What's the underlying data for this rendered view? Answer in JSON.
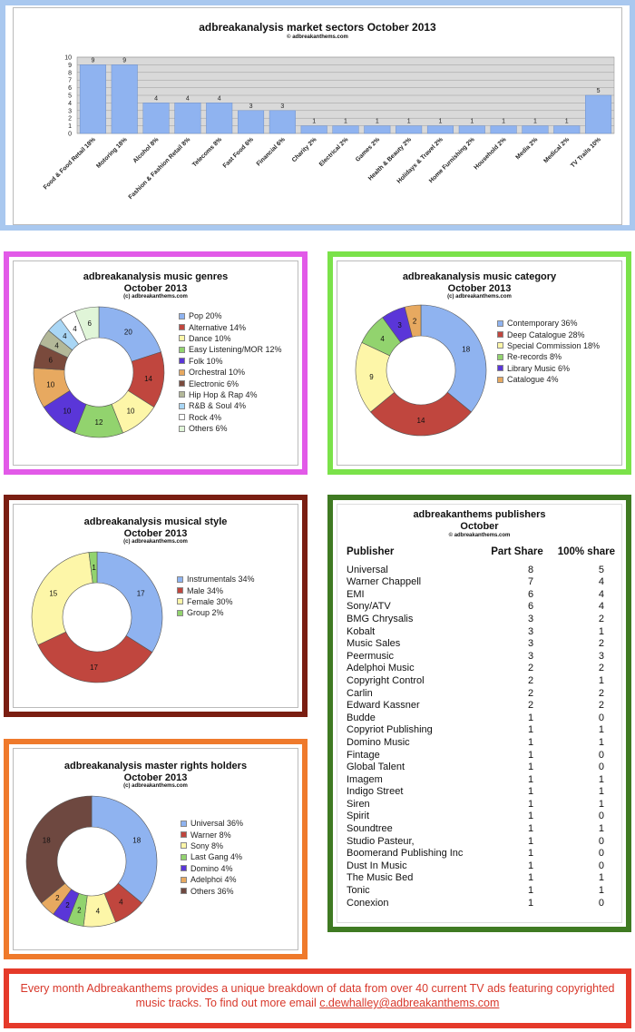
{
  "chart_data": [
    {
      "id": "sectors",
      "type": "bar",
      "title": "adbreakanalysis market sectors October 2013",
      "copyright": "© adbreakanthems.com",
      "categories": [
        "Food & Food Retail 18%",
        "Motoring 18%",
        "Alcohol 8%",
        "Fashion & Fashion Retail 8%",
        "Telecoms 8%",
        "Fast Food 6%",
        "Financial 6%",
        "Charity 2%",
        "Electrical 2%",
        "Games 2%",
        "Health & Beauty 2%",
        "Holidays & Travel 2%",
        "Home Furnishing 2%",
        "Household 2%",
        "Media 2%",
        "Medical 2%",
        "TV Trails 10%"
      ],
      "values": [
        9,
        9,
        4,
        4,
        4,
        3,
        3,
        1,
        1,
        1,
        1,
        1,
        1,
        1,
        1,
        1,
        5
      ],
      "ylim": [
        0,
        10
      ],
      "yticks": [
        "0",
        "1",
        "2",
        "3",
        "4",
        "5",
        "6",
        "7",
        "8",
        "9",
        "10"
      ],
      "grid": true,
      "bar_color": "#8fb3f0"
    },
    {
      "id": "genres",
      "type": "pie",
      "title_lines": [
        "adbreakanalysis music genres",
        "October 2013"
      ],
      "copyright": "(c) adbreakanthems.com",
      "labels": [
        "Pop 20%",
        "Alternative 14%",
        "Dance 10%",
        "Easy Listening/MOR 12%",
        "Folk 10%",
        "Orchestral 10%",
        "Electronic 6%",
        "Hip Hop & Rap 4%",
        "R&B & Soul 4%",
        "Rock 4%",
        "Others 6%"
      ],
      "values": [
        20,
        14,
        10,
        12,
        10,
        10,
        6,
        4,
        4,
        4,
        6
      ],
      "colors": [
        "#8fb3f0",
        "#c0463e",
        "#fdf6a8",
        "#92d36e",
        "#5a36d8",
        "#e7a960",
        "#7a4a3c",
        "#b3b899",
        "#a9d6f5",
        "#ffffff",
        "#e0f5d8"
      ],
      "legend_position": "right"
    },
    {
      "id": "category",
      "type": "pie",
      "title_lines": [
        "adbreakanalysis music category",
        "October 2013"
      ],
      "copyright": "(c) adbreakanthems.com",
      "labels": [
        "Contemporary 36%",
        "Deep Catalogue 28%",
        "Special Commission 18%",
        "Re-records 8%",
        "Library Music 6%",
        "Catalogue 4%"
      ],
      "values": [
        18,
        14,
        9,
        4,
        3,
        2
      ],
      "colors": [
        "#8fb3f0",
        "#c0463e",
        "#fdf6a8",
        "#92d36e",
        "#5a36d8",
        "#e7a960"
      ],
      "legend_position": "right"
    },
    {
      "id": "style",
      "type": "pie",
      "title_lines": [
        "adbreakanalysis musical style",
        "October 2013"
      ],
      "copyright": "(c) adbreakanthems.com",
      "labels": [
        "Instrumentals 34%",
        "Male 34%",
        "Female 30%",
        "Group 2%"
      ],
      "values": [
        17,
        17,
        15,
        1
      ],
      "colors": [
        "#8fb3f0",
        "#c0463e",
        "#fdf6a8",
        "#92d36e"
      ],
      "legend_position": "right"
    },
    {
      "id": "rights",
      "type": "pie",
      "title_lines": [
        "adbreakanalysis master rights holders",
        "October 2013"
      ],
      "copyright": "(c) adbreakanthems.com",
      "labels": [
        "Universal 36%",
        "Warner 8%",
        "Sony 8%",
        "Last Gang 4%",
        "Domino 4%",
        "Adelphoi 4%",
        "Others 36%"
      ],
      "values": [
        18,
        4,
        4,
        2,
        2,
        2,
        18
      ],
      "colors": [
        "#8fb3f0",
        "#c0463e",
        "#fdf6a8",
        "#92d36e",
        "#5a36d8",
        "#e7a960",
        "#6e4840"
      ],
      "legend_position": "right"
    },
    {
      "id": "publishers",
      "type": "table",
      "title_lines": [
        "adbreakanthems publishers",
        "October"
      ],
      "copyright": "© adbreakanthems.com",
      "columns": [
        "Publisher",
        "Part Share",
        "100% share"
      ],
      "rows": [
        [
          "Universal",
          "8",
          "5"
        ],
        [
          "Warner Chappell",
          "7",
          "4"
        ],
        [
          "EMI",
          "6",
          "4"
        ],
        [
          "Sony/ATV",
          "6",
          "4"
        ],
        [
          "BMG Chrysalis",
          "3",
          "2"
        ],
        [
          "Kobalt",
          "3",
          "1"
        ],
        [
          "Music Sales",
          "3",
          "2"
        ],
        [
          "Peermusic",
          "3",
          "3"
        ],
        [
          "Adelphoi Music",
          "2",
          "2"
        ],
        [
          "Copyright Control",
          "2",
          "1"
        ],
        [
          "Carlin",
          "2",
          "2"
        ],
        [
          "Edward Kassner",
          "2",
          "2"
        ],
        [
          "Budde",
          "1",
          "0"
        ],
        [
          "Copyriot Publishing",
          "1",
          "1"
        ],
        [
          "Domino Music",
          "1",
          "1"
        ],
        [
          "Fintage",
          "1",
          "0"
        ],
        [
          "Global Talent",
          "1",
          "0"
        ],
        [
          "Imagem",
          "1",
          "1"
        ],
        [
          "Indigo Street",
          "1",
          "1"
        ],
        [
          "Siren",
          "1",
          "1"
        ],
        [
          "Spirit",
          "1",
          "0"
        ],
        [
          "Soundtree",
          "1",
          "1"
        ],
        [
          "Studio Pasteur,",
          "1",
          "0"
        ],
        [
          "Boomerand Publishing Inc",
          "1",
          "0"
        ],
        [
          "Dust In Music",
          "1",
          "0"
        ],
        [
          "The Music Bed",
          "1",
          "1"
        ],
        [
          "Tonic",
          "1",
          "1"
        ],
        [
          "Conexion",
          "1",
          "0"
        ]
      ]
    }
  ],
  "footer": {
    "text": "Every month Adbreakanthems provides a unique breakdown of data from over 40 current TV ads featuring copyrighted music tracks. To find out more email ",
    "email": "c.dewhalley@adbreakanthems.com"
  },
  "frame_colors": {
    "sectors": "#a9c8ef",
    "genres": "#e25ae8",
    "category": "#7be24a",
    "style": "#7a1e12",
    "publishers": "#3f7a22",
    "rights": "#ef7a2c"
  }
}
